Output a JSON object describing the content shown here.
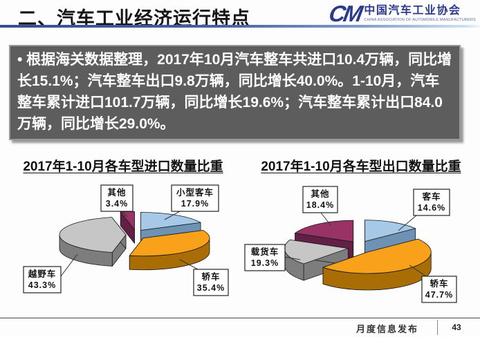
{
  "slide": {
    "title": "二、汽车工业经济运行特点",
    "logo": {
      "mark": "CM",
      "name_cn": "中国汽车工业协会",
      "name_en": "CHINA ASSOCIATION OF AUTOMOBILE MANUFACTURERS"
    },
    "summary": "• 根据海关数据整理，2017年10月汽车整车共进口10.4万辆，同比增长15.1%；汽车整车出口9.8万辆，同比增长40.0%。1-10月，汽车整车累计进口101.7万辆，同比增长19.6%；汽车整车累计出口84.0万辆，同比增长29.0%。",
    "footer": {
      "label": "月度信息发布",
      "page": "43"
    }
  },
  "colors": {
    "header_rule": "#31508f",
    "summary_bg": "#5d5d5d",
    "summary_text": "#ffffff",
    "logo_navy": "#2b3a8c"
  },
  "chart_data": [
    {
      "type": "pie",
      "style": "3d-exploded",
      "title": "2017年1-10月各车型进口数量比重",
      "categories": [
        "小型客车",
        "轿车",
        "越野车",
        "其他"
      ],
      "values": [
        17.9,
        35.4,
        43.3,
        3.4
      ],
      "value_labels": [
        "17.9%",
        "35.4%",
        "43.3%",
        "3.4%"
      ],
      "unit": "percent",
      "start_angle_deg": -90,
      "clockwise": true,
      "legend": "none",
      "data_labels": "outside-boxed",
      "colors_top": [
        "#a6c9e8",
        "#f9a11b",
        "#c6c6c6",
        "#993366"
      ],
      "colors_side": [
        "#6d92b4",
        "#a86d05",
        "#7d7d7d",
        "#632046"
      ]
    },
    {
      "type": "pie",
      "style": "3d-exploded",
      "title": "2017年1-10月各车型出口数量比重",
      "categories": [
        "客车",
        "轿车",
        "载货车",
        "其他"
      ],
      "values": [
        14.6,
        47.7,
        19.3,
        18.4
      ],
      "value_labels": [
        "14.6%",
        "47.7%",
        "19.3%",
        "18.4%"
      ],
      "unit": "percent",
      "start_angle_deg": -90,
      "clockwise": true,
      "legend": "none",
      "data_labels": "outside-boxed",
      "colors_top": [
        "#a6c9e8",
        "#f9a11b",
        "#c6c6c6",
        "#993366"
      ],
      "colors_side": [
        "#6d92b4",
        "#a86d05",
        "#7d7d7d",
        "#632046"
      ]
    }
  ]
}
